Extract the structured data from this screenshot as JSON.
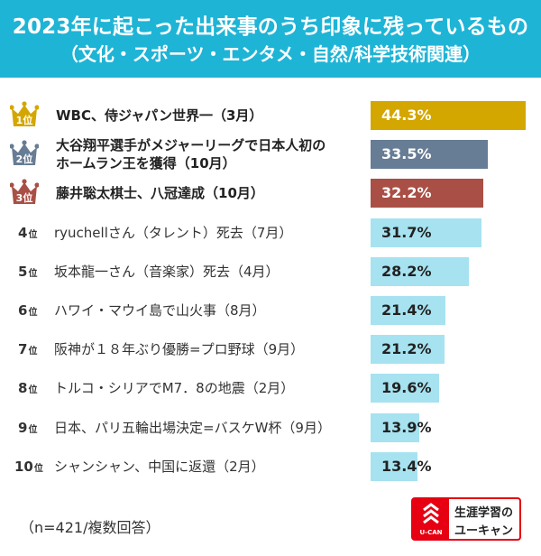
{
  "header": {
    "title": "2023年に起こった出来事のうち印象に残っているもの",
    "subtitle": "（文化・スポーツ・エンタメ・自然/科学技術関連）"
  },
  "rank_suffix": "位",
  "note": "（n=421/複数回答）",
  "logo": {
    "line1": "生涯学習の",
    "line2": "ユーキャン",
    "brand": "U-CAN"
  },
  "colors": {
    "header": "#1eb4d6",
    "gold": "#d4a600",
    "silver": "#677c95",
    "bronze": "#a94f45",
    "default": "#a6e2f0",
    "brand_red": "#e60012"
  },
  "chart_data": {
    "type": "bar",
    "orientation": "horizontal",
    "title": "2023年に起こった出来事のうち印象に残っているもの",
    "subtitle": "（文化・スポーツ・エンタメ・自然/科学技術関連）",
    "unit": "%",
    "items": [
      {
        "rank": "1",
        "label": "WBC、侍ジャパン世界一（3月）",
        "value": 44.3,
        "display": "44.3%",
        "tier": "gold"
      },
      {
        "rank": "2",
        "label": "大谷翔平選手がメジャーリーグで日本人初の\nホームラン王を獲得（10月）",
        "value": 33.5,
        "display": "33.5%",
        "tier": "silver"
      },
      {
        "rank": "3",
        "label": "藤井聡太棋士、八冠達成（10月）",
        "value": 32.2,
        "display": "32.2%",
        "tier": "bronze"
      },
      {
        "rank": "4",
        "label": "ryuchellさん（タレント）死去（7月）",
        "value": 31.7,
        "display": "31.7%",
        "tier": "default"
      },
      {
        "rank": "5",
        "label": "坂本龍一さん（音楽家）死去（4月）",
        "value": 28.2,
        "display": "28.2%",
        "tier": "default"
      },
      {
        "rank": "6",
        "label": "ハワイ・マウイ島で山火事（8月）",
        "value": 21.4,
        "display": "21.4%",
        "tier": "default"
      },
      {
        "rank": "7",
        "label": "阪神が１８年ぶり優勝=プロ野球（9月）",
        "value": 21.2,
        "display": "21.2%",
        "tier": "default"
      },
      {
        "rank": "8",
        "label": "トルコ・シリアでM7．8の地震（2月）",
        "value": 19.6,
        "display": "19.6%",
        "tier": "default"
      },
      {
        "rank": "9",
        "label": "日本、パリ五輪出場決定=バスケW杯（9月）",
        "value": 13.9,
        "display": "13.9%",
        "tier": "default"
      },
      {
        "rank": "10",
        "label": "シャンシャン、中国に返還（2月）",
        "value": 13.4,
        "display": "13.4%",
        "tier": "default"
      }
    ],
    "xlim": [
      0,
      45
    ]
  }
}
